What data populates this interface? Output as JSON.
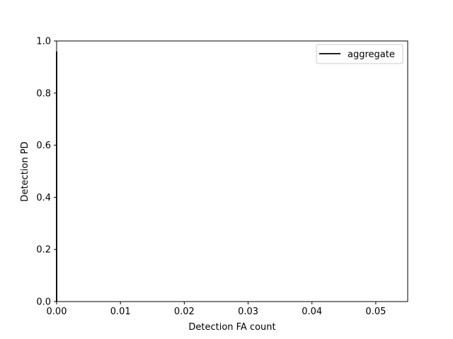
{
  "chart_data": {
    "type": "line",
    "title": "",
    "xlabel": "Detection FA count",
    "ylabel": "Detection PD",
    "xlim": [
      0.0,
      0.055
    ],
    "ylim": [
      0.0,
      1.0
    ],
    "xticks": [
      "0.00",
      "0.01",
      "0.02",
      "0.03",
      "0.04",
      "0.05"
    ],
    "yticks": [
      "0.0",
      "0.2",
      "0.4",
      "0.6",
      "0.8",
      "1.0"
    ],
    "grid": false,
    "legend_position": "top-right",
    "series": [
      {
        "name": "aggregate",
        "color": "#1f1f2e",
        "x": [
          0.0,
          0.0
        ],
        "y": [
          0.0,
          0.96
        ]
      }
    ]
  }
}
